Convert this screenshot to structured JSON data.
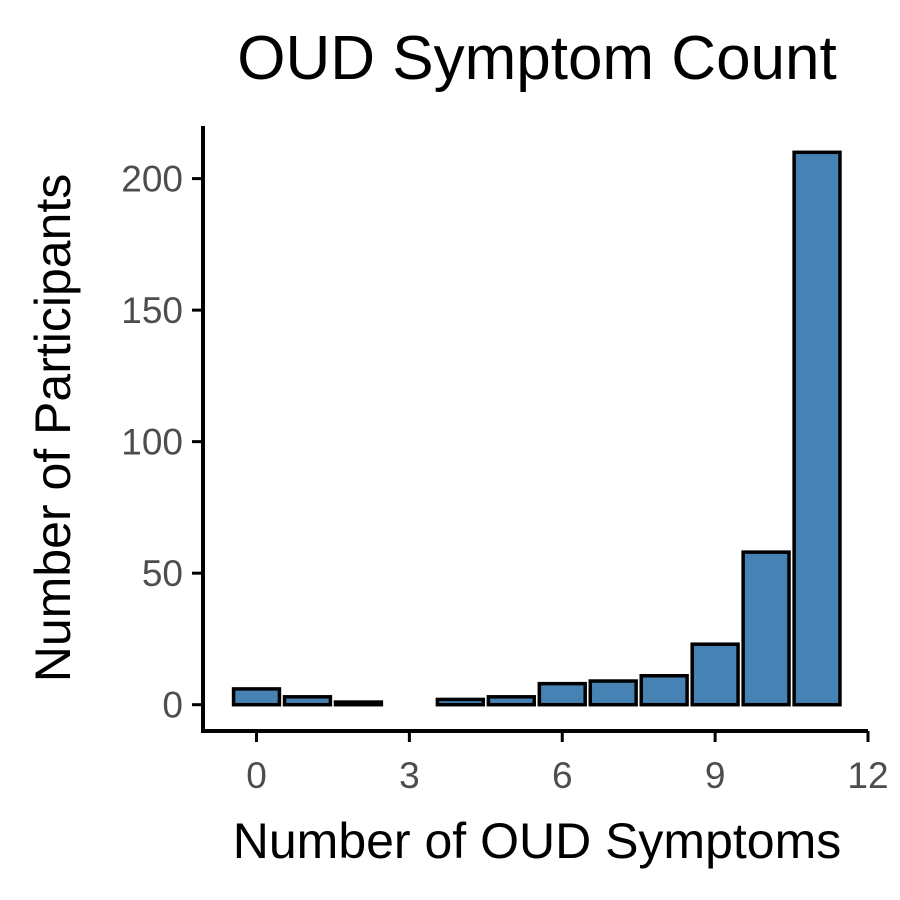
{
  "chart_data": {
    "type": "bar",
    "title": "OUD Symptom Count",
    "xlabel": "Number of OUD Symptoms",
    "ylabel": "Number of Participants",
    "x": [
      0,
      1,
      2,
      4,
      5,
      6,
      7,
      8,
      9,
      10,
      11
    ],
    "values": [
      6,
      3,
      1,
      2,
      3,
      8,
      9,
      11,
      23,
      58,
      210
    ],
    "xticks": [
      "0",
      "3",
      "6",
      "9",
      "12"
    ],
    "yticks": [
      "0",
      "50",
      "100",
      "150",
      "200"
    ],
    "xlim": [
      -1.05,
      12
    ],
    "ylim": [
      -10,
      220
    ],
    "grid": false,
    "bar_color": "#4682B4",
    "outline_color": "#000000"
  }
}
